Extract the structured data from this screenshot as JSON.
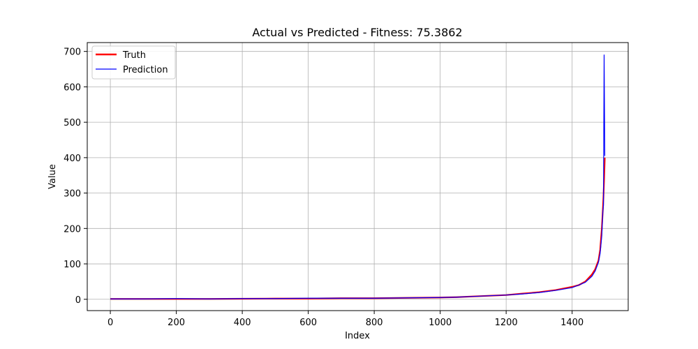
{
  "chart_data": {
    "type": "line",
    "title": "Actual vs Predicted - Fitness: 75.3862",
    "xlabel": "Index",
    "ylabel": "Value",
    "xlim": [
      -70,
      1570
    ],
    "ylim": [
      -32,
      725
    ],
    "xticks": [
      0,
      200,
      400,
      600,
      800,
      1000,
      1200,
      1400
    ],
    "yticks": [
      0,
      100,
      200,
      300,
      400,
      500,
      600,
      700
    ],
    "grid": true,
    "legend": {
      "placement": "top-left"
    },
    "series": [
      {
        "name": "Truth",
        "color": "#ff0000",
        "x": [
          0,
          100,
          200,
          300,
          400,
          500,
          600,
          700,
          800,
          900,
          1000,
          1050,
          1100,
          1150,
          1200,
          1250,
          1300,
          1350,
          1400,
          1420,
          1440,
          1460,
          1470,
          1480,
          1485,
          1490,
          1493,
          1495,
          1497,
          1499
        ],
        "y": [
          1,
          1,
          1,
          1,
          1.5,
          2,
          2,
          3,
          3,
          4,
          5,
          6,
          8,
          10,
          12,
          16,
          20,
          26,
          35,
          40,
          50,
          70,
          85,
          110,
          140,
          200,
          250,
          290,
          340,
          400
        ]
      },
      {
        "name": "Prediction",
        "color": "#0000ff",
        "x": [
          0,
          100,
          200,
          300,
          400,
          500,
          600,
          700,
          800,
          900,
          1000,
          1050,
          1100,
          1150,
          1200,
          1250,
          1300,
          1350,
          1400,
          1420,
          1440,
          1460,
          1470,
          1480,
          1485,
          1490,
          1493,
          1495,
          1497,
          1499
        ],
        "y": [
          1,
          1,
          2,
          1,
          2,
          2,
          3,
          3,
          3,
          4,
          5,
          6,
          8,
          10,
          12,
          15,
          19,
          25,
          33,
          40,
          48,
          65,
          80,
          105,
          130,
          180,
          245,
          265,
          690,
          405
        ]
      }
    ]
  }
}
